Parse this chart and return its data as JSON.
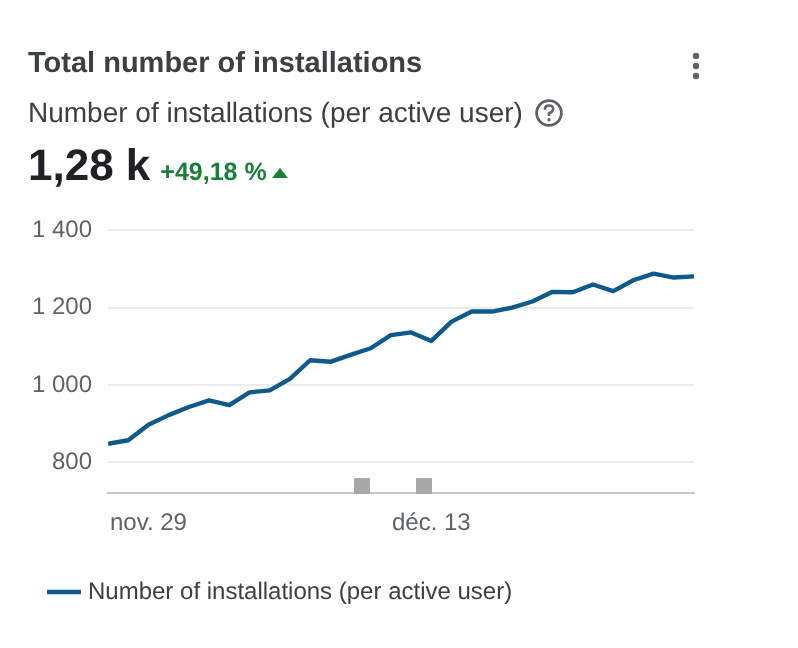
{
  "chart_data": {
    "type": "line",
    "title": "Total number of installations",
    "subtitle": "Number of installations (per active user)",
    "annotations": [
      "1,28 k",
      "+49,18 %"
    ],
    "x": [
      "--11-27",
      "--11-28",
      "--11-29",
      "--11-30",
      "--12-01",
      "--12-02",
      "--12-03",
      "--12-04",
      "--12-05",
      "--12-06",
      "--12-07",
      "--12-08",
      "--12-09",
      "--12-10",
      "--12-11",
      "--12-12",
      "--12-13",
      "--12-14",
      "--12-15",
      "--12-16",
      "--12-17",
      "--12-18",
      "--12-19",
      "--12-20",
      "--12-21",
      "--12-22",
      "--12-23",
      "--12-24",
      "--12-25",
      "--12-26"
    ],
    "series": [
      {
        "name": "Number of installations (per active user)",
        "color": "#0e5a8a",
        "values": [
          848,
          857,
          897,
          922,
          943,
          960,
          948,
          981,
          986,
          1016,
          1064,
          1060,
          1078,
          1095,
          1129,
          1136,
          1114,
          1164,
          1190,
          1190,
          1200,
          1216,
          1241,
          1240,
          1260,
          1243,
          1271,
          1288,
          1278,
          1281
        ]
      }
    ],
    "xlim": [
      "--11-27",
      "--12-26"
    ],
    "xticks": [
      {
        "value": "--11-29",
        "label": "nov. 29"
      },
      {
        "value": "--12-13",
        "label": "déc. 13"
      }
    ],
    "ylim": [
      720,
      1400
    ],
    "yticks": [
      800,
      {
        "value": 1000,
        "label": "1 000"
      },
      {
        "value": 1200,
        "label": "1 200"
      },
      {
        "value": 1400,
        "label": "1 400"
      }
    ],
    "grid": "y",
    "legend": "bottom",
    "marker": "none",
    "line_style": "solid"
  }
}
